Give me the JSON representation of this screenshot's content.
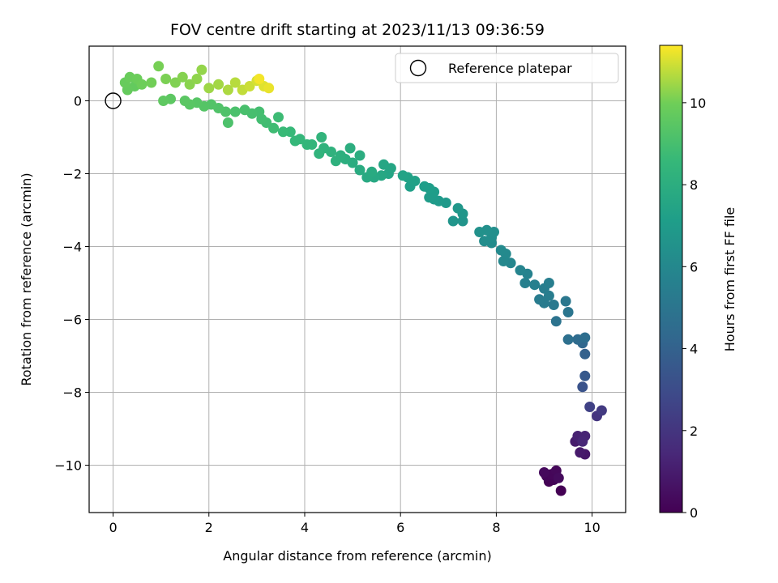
{
  "chart_data": {
    "type": "scatter",
    "title": "FOV centre drift starting at 2023/11/13 09:36:59",
    "xlabel": "Angular distance from reference (arcmin)",
    "ylabel": "Rotation from reference (arcmin)",
    "xlim": [
      -0.5,
      10.7
    ],
    "ylim": [
      -11.3,
      1.5
    ],
    "xticks": [
      0,
      2,
      4,
      6,
      8,
      10
    ],
    "yticks": [
      0,
      -2,
      -4,
      -6,
      -8,
      -10
    ],
    "xtick_labels": [
      "0",
      "2",
      "4",
      "6",
      "8",
      "10"
    ],
    "ytick_labels": [
      "0",
      "−2",
      "−4",
      "−6",
      "−8",
      "−10"
    ],
    "grid": true,
    "legend": {
      "placement": "top-right",
      "entries": [
        "Reference platepar"
      ]
    },
    "reference_point": {
      "x": 0,
      "y": 0,
      "label": "Reference platepar"
    },
    "colorbar": {
      "label": "Hours from first FF file",
      "colormap": "viridis",
      "range": [
        0,
        11.4
      ],
      "ticks": [
        0,
        2,
        4,
        6,
        8,
        10
      ],
      "tick_labels": [
        "0",
        "2",
        "4",
        "6",
        "8",
        "10"
      ]
    },
    "points": [
      {
        "x": 9.35,
        "y": -10.7,
        "t": 0.0
      },
      {
        "x": 9.1,
        "y": -10.45,
        "t": 0.05
      },
      {
        "x": 9.2,
        "y": -10.4,
        "t": 0.1
      },
      {
        "x": 9.05,
        "y": -10.3,
        "t": 0.15
      },
      {
        "x": 9.15,
        "y": -10.25,
        "t": 0.2
      },
      {
        "x": 9.25,
        "y": -10.15,
        "t": 0.25
      },
      {
        "x": 9.0,
        "y": -10.2,
        "t": 0.3
      },
      {
        "x": 9.3,
        "y": -10.35,
        "t": 0.35
      },
      {
        "x": 9.85,
        "y": -9.7,
        "t": 0.8
      },
      {
        "x": 9.75,
        "y": -9.65,
        "t": 0.9
      },
      {
        "x": 9.65,
        "y": -9.35,
        "t": 1.0
      },
      {
        "x": 9.75,
        "y": -9.25,
        "t": 1.1
      },
      {
        "x": 9.7,
        "y": -9.2,
        "t": 1.2
      },
      {
        "x": 9.85,
        "y": -9.2,
        "t": 1.3
      },
      {
        "x": 9.8,
        "y": -9.35,
        "t": 1.4
      },
      {
        "x": 10.1,
        "y": -8.65,
        "t": 2.0
      },
      {
        "x": 10.2,
        "y": -8.5,
        "t": 2.2
      },
      {
        "x": 9.95,
        "y": -8.4,
        "t": 2.5
      },
      {
        "x": 9.8,
        "y": -7.85,
        "t": 3.3
      },
      {
        "x": 9.85,
        "y": -7.55,
        "t": 3.6
      },
      {
        "x": 9.85,
        "y": -6.95,
        "t": 4.0
      },
      {
        "x": 9.8,
        "y": -6.65,
        "t": 4.3
      },
      {
        "x": 9.7,
        "y": -6.55,
        "t": 4.5
      },
      {
        "x": 9.85,
        "y": -6.5,
        "t": 4.6
      },
      {
        "x": 9.5,
        "y": -6.55,
        "t": 4.7
      },
      {
        "x": 9.25,
        "y": -6.05,
        "t": 4.9
      },
      {
        "x": 9.5,
        "y": -5.8,
        "t": 5.0
      },
      {
        "x": 9.45,
        "y": -5.5,
        "t": 5.1
      },
      {
        "x": 9.2,
        "y": -5.6,
        "t": 5.2
      },
      {
        "x": 9.0,
        "y": -5.55,
        "t": 5.3
      },
      {
        "x": 8.9,
        "y": -5.45,
        "t": 5.35
      },
      {
        "x": 9.1,
        "y": -5.35,
        "t": 5.4
      },
      {
        "x": 9.0,
        "y": -5.15,
        "t": 5.45
      },
      {
        "x": 9.1,
        "y": -5.0,
        "t": 5.5
      },
      {
        "x": 8.8,
        "y": -5.05,
        "t": 5.55
      },
      {
        "x": 8.6,
        "y": -5.0,
        "t": 5.6
      },
      {
        "x": 8.65,
        "y": -4.75,
        "t": 5.7
      },
      {
        "x": 8.5,
        "y": -4.65,
        "t": 5.8
      },
      {
        "x": 8.3,
        "y": -4.45,
        "t": 5.9
      },
      {
        "x": 8.15,
        "y": -4.4,
        "t": 6.0
      },
      {
        "x": 8.2,
        "y": -4.2,
        "t": 6.05
      },
      {
        "x": 8.1,
        "y": -4.1,
        "t": 6.1
      },
      {
        "x": 7.9,
        "y": -3.9,
        "t": 6.2
      },
      {
        "x": 7.75,
        "y": -3.85,
        "t": 6.25
      },
      {
        "x": 7.9,
        "y": -3.75,
        "t": 6.3
      },
      {
        "x": 7.95,
        "y": -3.6,
        "t": 6.35
      },
      {
        "x": 7.8,
        "y": -3.55,
        "t": 6.4
      },
      {
        "x": 7.65,
        "y": -3.6,
        "t": 6.45
      },
      {
        "x": 7.3,
        "y": -3.3,
        "t": 6.6
      },
      {
        "x": 7.1,
        "y": -3.3,
        "t": 6.65
      },
      {
        "x": 7.3,
        "y": -3.1,
        "t": 6.7
      },
      {
        "x": 7.2,
        "y": -2.95,
        "t": 6.75
      },
      {
        "x": 6.95,
        "y": -2.8,
        "t": 6.85
      },
      {
        "x": 6.8,
        "y": -2.75,
        "t": 6.9
      },
      {
        "x": 6.7,
        "y": -2.7,
        "t": 6.95
      },
      {
        "x": 6.6,
        "y": -2.65,
        "t": 7.0
      },
      {
        "x": 6.7,
        "y": -2.5,
        "t": 7.05
      },
      {
        "x": 6.6,
        "y": -2.4,
        "t": 7.1
      },
      {
        "x": 6.5,
        "y": -2.35,
        "t": 7.15
      },
      {
        "x": 6.2,
        "y": -2.35,
        "t": 7.25
      },
      {
        "x": 6.3,
        "y": -2.2,
        "t": 7.3
      },
      {
        "x": 6.15,
        "y": -2.1,
        "t": 7.35
      },
      {
        "x": 6.05,
        "y": -2.05,
        "t": 7.4
      },
      {
        "x": 5.75,
        "y": -2.0,
        "t": 7.5
      },
      {
        "x": 5.8,
        "y": -1.85,
        "t": 7.55
      },
      {
        "x": 5.65,
        "y": -1.75,
        "t": 7.6
      },
      {
        "x": 5.6,
        "y": -2.05,
        "t": 7.65
      },
      {
        "x": 5.45,
        "y": -2.1,
        "t": 7.7
      },
      {
        "x": 5.3,
        "y": -2.1,
        "t": 7.75
      },
      {
        "x": 5.4,
        "y": -1.95,
        "t": 7.8
      },
      {
        "x": 5.15,
        "y": -1.9,
        "t": 7.85
      },
      {
        "x": 5.0,
        "y": -1.7,
        "t": 7.9
      },
      {
        "x": 5.15,
        "y": -1.5,
        "t": 7.95
      },
      {
        "x": 4.95,
        "y": -1.3,
        "t": 8.0
      },
      {
        "x": 4.85,
        "y": -1.6,
        "t": 8.05
      },
      {
        "x": 4.75,
        "y": -1.5,
        "t": 8.1
      },
      {
        "x": 4.65,
        "y": -1.65,
        "t": 8.15
      },
      {
        "x": 4.55,
        "y": -1.4,
        "t": 8.2
      },
      {
        "x": 4.4,
        "y": -1.3,
        "t": 8.25
      },
      {
        "x": 4.3,
        "y": -1.45,
        "t": 8.3
      },
      {
        "x": 4.35,
        "y": -1.0,
        "t": 8.35
      },
      {
        "x": 4.15,
        "y": -1.2,
        "t": 8.4
      },
      {
        "x": 4.05,
        "y": -1.2,
        "t": 8.45
      },
      {
        "x": 3.9,
        "y": -1.05,
        "t": 8.5
      },
      {
        "x": 3.8,
        "y": -1.1,
        "t": 8.55
      },
      {
        "x": 3.7,
        "y": -0.85,
        "t": 8.6
      },
      {
        "x": 3.55,
        "y": -0.85,
        "t": 8.65
      },
      {
        "x": 3.45,
        "y": -0.45,
        "t": 8.75
      },
      {
        "x": 3.35,
        "y": -0.75,
        "t": 8.8
      },
      {
        "x": 3.2,
        "y": -0.6,
        "t": 8.85
      },
      {
        "x": 3.1,
        "y": -0.5,
        "t": 8.9
      },
      {
        "x": 3.05,
        "y": -0.3,
        "t": 8.95
      },
      {
        "x": 2.9,
        "y": -0.35,
        "t": 9.0
      },
      {
        "x": 2.75,
        "y": -0.25,
        "t": 9.05
      },
      {
        "x": 2.55,
        "y": -0.3,
        "t": 9.1
      },
      {
        "x": 2.4,
        "y": -0.6,
        "t": 9.15
      },
      {
        "x": 2.35,
        "y": -0.3,
        "t": 9.2
      },
      {
        "x": 2.2,
        "y": -0.2,
        "t": 9.25
      },
      {
        "x": 2.05,
        "y": -0.1,
        "t": 9.3
      },
      {
        "x": 1.9,
        "y": -0.15,
        "t": 9.35
      },
      {
        "x": 1.75,
        "y": -0.05,
        "t": 9.4
      },
      {
        "x": 1.6,
        "y": -0.1,
        "t": 9.45
      },
      {
        "x": 1.5,
        "y": 0.0,
        "t": 9.5
      },
      {
        "x": 1.2,
        "y": 0.05,
        "t": 9.55
      },
      {
        "x": 1.05,
        "y": 0.0,
        "t": 9.6
      },
      {
        "x": 0.45,
        "y": 0.4,
        "t": 9.7
      },
      {
        "x": 0.3,
        "y": 0.3,
        "t": 9.75
      },
      {
        "x": 0.25,
        "y": 0.5,
        "t": 9.8
      },
      {
        "x": 0.35,
        "y": 0.65,
        "t": 9.85
      },
      {
        "x": 0.5,
        "y": 0.6,
        "t": 9.9
      },
      {
        "x": 0.6,
        "y": 0.45,
        "t": 9.95
      },
      {
        "x": 0.8,
        "y": 0.5,
        "t": 10.0
      },
      {
        "x": 0.95,
        "y": 0.95,
        "t": 10.05
      },
      {
        "x": 1.1,
        "y": 0.6,
        "t": 10.1
      },
      {
        "x": 1.3,
        "y": 0.5,
        "t": 10.15
      },
      {
        "x": 1.45,
        "y": 0.65,
        "t": 10.2
      },
      {
        "x": 1.6,
        "y": 0.45,
        "t": 10.25
      },
      {
        "x": 1.75,
        "y": 0.6,
        "t": 10.3
      },
      {
        "x": 1.85,
        "y": 0.85,
        "t": 10.35
      },
      {
        "x": 2.0,
        "y": 0.35,
        "t": 10.45
      },
      {
        "x": 2.2,
        "y": 0.45,
        "t": 10.5
      },
      {
        "x": 2.4,
        "y": 0.3,
        "t": 10.6
      },
      {
        "x": 2.55,
        "y": 0.5,
        "t": 10.7
      },
      {
        "x": 2.7,
        "y": 0.3,
        "t": 10.8
      },
      {
        "x": 2.85,
        "y": 0.4,
        "t": 10.9
      },
      {
        "x": 3.0,
        "y": 0.55,
        "t": 11.0
      },
      {
        "x": 3.15,
        "y": 0.4,
        "t": 11.1
      },
      {
        "x": 3.25,
        "y": 0.35,
        "t": 11.2
      },
      {
        "x": 3.05,
        "y": 0.6,
        "t": 11.3
      }
    ]
  }
}
